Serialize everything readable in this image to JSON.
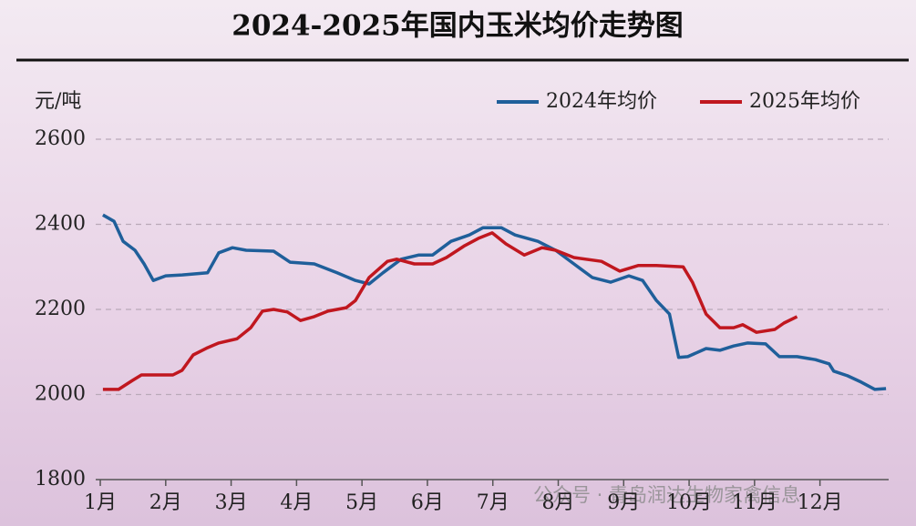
{
  "chart_data": {
    "type": "line",
    "title": "2024-2025年国内玉米均价走势图",
    "y_label": "元/吨",
    "watermark": "公众号 · 青岛润达生物家禽信息",
    "xlim": [
      0.93,
      13.05
    ],
    "ylim": [
      1800,
      2600
    ],
    "xticks": [
      {
        "value": 1,
        "label": "1月"
      },
      {
        "value": 2,
        "label": "2月"
      },
      {
        "value": 3,
        "label": "3月"
      },
      {
        "value": 4,
        "label": "4月"
      },
      {
        "value": 5,
        "label": "5月"
      },
      {
        "value": 6,
        "label": "6月"
      },
      {
        "value": 7,
        "label": "7月"
      },
      {
        "value": 8,
        "label": "8月"
      },
      {
        "value": 9,
        "label": "9月"
      },
      {
        "value": 10,
        "label": "10月"
      },
      {
        "value": 11,
        "label": "11月"
      },
      {
        "value": 12,
        "label": "12月"
      }
    ],
    "yticks": [
      1800,
      2000,
      2200,
      2400,
      2600
    ],
    "grid": true,
    "legend": "upper right",
    "series": [
      {
        "name": "2024年均价",
        "color": "#1f5f9a",
        "x": [
          1.04,
          1.21,
          1.35,
          1.53,
          1.67,
          1.81,
          2.0,
          2.25,
          2.64,
          2.81,
          3.02,
          3.23,
          3.65,
          3.9,
          4.27,
          4.62,
          4.9,
          5.11,
          5.32,
          5.6,
          5.87,
          6.08,
          6.36,
          6.64,
          6.85,
          7.13,
          7.34,
          7.69,
          7.96,
          8.24,
          8.52,
          8.8,
          9.08,
          9.29,
          9.5,
          9.7,
          9.84,
          9.98,
          10.26,
          10.47,
          10.68,
          10.89,
          11.17,
          11.38,
          11.65,
          11.93,
          12.14,
          12.21,
          12.42,
          12.63,
          12.84,
          13.01
        ],
        "values": [
          2422,
          2407,
          2360,
          2339,
          2307,
          2268,
          2279,
          2281,
          2286,
          2333,
          2345,
          2339,
          2337,
          2311,
          2307,
          2286,
          2268,
          2260,
          2286,
          2318,
          2328,
          2328,
          2360,
          2375,
          2392,
          2392,
          2375,
          2360,
          2339,
          2307,
          2275,
          2264,
          2279,
          2268,
          2221,
          2189,
          2087,
          2089,
          2108,
          2104,
          2114,
          2121,
          2119,
          2089,
          2089,
          2082,
          2072,
          2055,
          2044,
          2029,
          2012,
          2014
        ]
      },
      {
        "name": "2025年均价",
        "color": "#c0171f",
        "x": [
          1.04,
          1.28,
          1.49,
          1.63,
          2.11,
          2.25,
          2.42,
          2.64,
          2.81,
          3.09,
          3.3,
          3.48,
          3.65,
          3.86,
          4.06,
          4.27,
          4.48,
          4.76,
          4.9,
          5.11,
          5.39,
          5.53,
          5.8,
          6.08,
          6.29,
          6.57,
          6.78,
          6.99,
          7.2,
          7.48,
          7.75,
          7.96,
          8.24,
          8.66,
          8.94,
          9.22,
          9.5,
          9.91,
          10.05,
          10.26,
          10.47,
          10.68,
          10.82,
          11.03,
          11.31,
          11.45,
          11.65
        ],
        "values": [
          2012,
          2012,
          2033,
          2046,
          2046,
          2057,
          2093,
          2110,
          2121,
          2131,
          2157,
          2196,
          2200,
          2194,
          2174,
          2183,
          2196,
          2204,
          2221,
          2275,
          2313,
          2318,
          2307,
          2307,
          2322,
          2350,
          2367,
          2380,
          2354,
          2328,
          2345,
          2339,
          2322,
          2313,
          2290,
          2303,
          2303,
          2300,
          2264,
          2189,
          2157,
          2157,
          2164,
          2146,
          2153,
          2168,
          2183
        ]
      }
    ]
  }
}
